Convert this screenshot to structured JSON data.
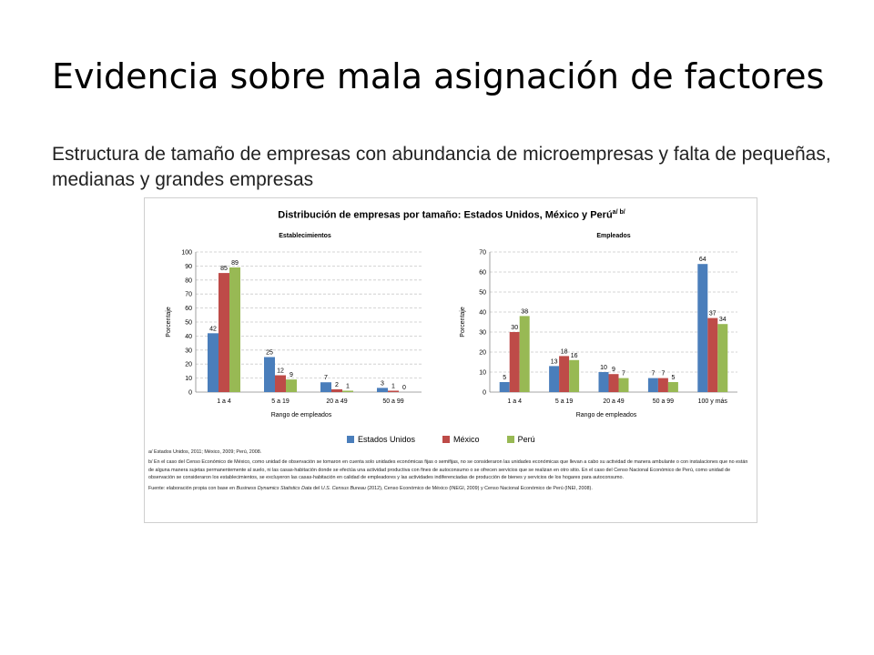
{
  "slide": {
    "title": "Evidencia sobre mala asignación de factores",
    "subtitle": "Estructura de tamaño de empresas con abundancia de microempresas y falta de pequeñas, medianas y grandes empresas"
  },
  "figure": {
    "title": "Distribución de empresas por tamaño: Estados Unidos, México y Perú",
    "title_sup": "a/ b/",
    "note_a": "a/ Estados Unidos, 2011; México, 2009; Perú, 2008.",
    "note_b": "b/ En el caso del Censo Económico de México, como unidad de observación se tomaron en cuenta solo unidades económicas fijas o semifijas, no se consideraron las unidades económicas que llevan a cabo su actividad de manera ambulante o con instalaciones que no están de alguna manera sujetas permanentemente al suelo, ni las casas-habitación donde se efectúa una actividad productiva con fines de autoconsumo o se ofrecen servicios que se realizan en otro sitio. En el caso del Censo Nacional Económico de Perú, como unidad de observación se consideraron los establecimientos, se excluyeron las casas-habitación en calidad de empleadores y las actividades indiferenciadas de producción de bienes y servicios de los hogares para autoconsumo.",
    "source_prefix": "Fuente: elaboración propia con base en ",
    "source_italic_1": "Business Dynamics Statistics Data",
    "source_mid": " del ",
    "source_italic_2": "U.S. Census Bureau",
    "source_suffix": " (2012), Censo Económico de México (INEGI, 2009) y Censo Nacional Económico de Perú (INEI, 2008)."
  },
  "chart_data": [
    {
      "type": "bar",
      "title": "Establecimientos",
      "xlabel": "Rango de empleados",
      "ylabel": "Porcentaje",
      "ylim": [
        0,
        100
      ],
      "yticks": [
        0,
        10,
        20,
        30,
        40,
        50,
        60,
        70,
        80,
        90,
        100
      ],
      "grid": true,
      "legend": "bottom",
      "categories": [
        "1 a 4",
        "5 a 19",
        "20 a 49",
        "50 a 99"
      ],
      "series": [
        {
          "name": "Estados Unidos",
          "color": "#4a7ebb",
          "values": [
            42,
            25,
            7,
            3
          ]
        },
        {
          "name": "México",
          "color": "#be4b48",
          "values": [
            85,
            12,
            2,
            1
          ]
        },
        {
          "name": "Perú",
          "color": "#98b954",
          "values": [
            89,
            9,
            1,
            0
          ]
        }
      ]
    },
    {
      "type": "bar",
      "title": "Empleados",
      "xlabel": "Rango de empleados",
      "ylabel": "Porcentaje",
      "ylim": [
        0,
        70
      ],
      "yticks": [
        0,
        10,
        20,
        30,
        40,
        50,
        60,
        70
      ],
      "grid": true,
      "legend": "bottom",
      "categories": [
        "1 a 4",
        "5 a 19",
        "20 a 49",
        "50 a 99",
        "100 y más"
      ],
      "series": [
        {
          "name": "Estados Unidos",
          "color": "#4a7ebb",
          "values": [
            5,
            13,
            10,
            7,
            64
          ]
        },
        {
          "name": "México",
          "color": "#be4b48",
          "values": [
            30,
            18,
            9,
            7,
            37
          ]
        },
        {
          "name": "Perú",
          "color": "#98b954",
          "values": [
            38,
            16,
            7,
            5,
            34
          ]
        }
      ]
    }
  ]
}
